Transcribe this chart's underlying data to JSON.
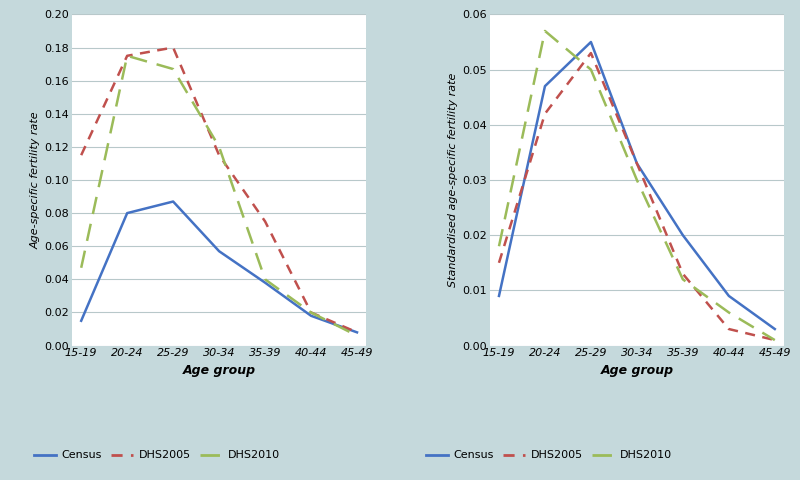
{
  "age_groups": [
    "15-19",
    "20-24",
    "25-29",
    "30-34",
    "35-39",
    "40-44",
    "45-49"
  ],
  "left": {
    "ylabel": "Age-specific fertility rate",
    "ylim": [
      0.0,
      0.2
    ],
    "yticks": [
      0.0,
      0.02,
      0.04,
      0.06,
      0.08,
      0.1,
      0.12,
      0.14,
      0.16,
      0.18,
      0.2
    ],
    "census": [
      0.015,
      0.08,
      0.087,
      0.057,
      0.038,
      0.018,
      0.008
    ],
    "dhs2005": [
      0.115,
      0.175,
      0.18,
      0.115,
      0.075,
      0.02,
      0.008
    ],
    "dhs2010": [
      0.047,
      0.175,
      0.167,
      0.12,
      0.04,
      0.02,
      0.006
    ]
  },
  "right": {
    "ylabel": "Standardised age-specific fertility rate",
    "ylim": [
      0.0,
      0.06
    ],
    "yticks": [
      0.0,
      0.01,
      0.02,
      0.03,
      0.04,
      0.05,
      0.06
    ],
    "census": [
      0.009,
      0.047,
      0.055,
      0.033,
      0.02,
      0.009,
      0.003
    ],
    "dhs2005": [
      0.015,
      0.042,
      0.053,
      0.033,
      0.013,
      0.003,
      0.001
    ],
    "dhs2010": [
      0.018,
      0.057,
      0.05,
      0.03,
      0.012,
      0.006,
      0.001
    ]
  },
  "xlabel": "Age group",
  "colors": {
    "census": "#4472C4",
    "dhs2005": "#C0504D",
    "dhs2010": "#9BBB59"
  },
  "background_color": "#C5D9DC",
  "plot_background": "#FFFFFF",
  "grid_color": "#B8C8CA"
}
